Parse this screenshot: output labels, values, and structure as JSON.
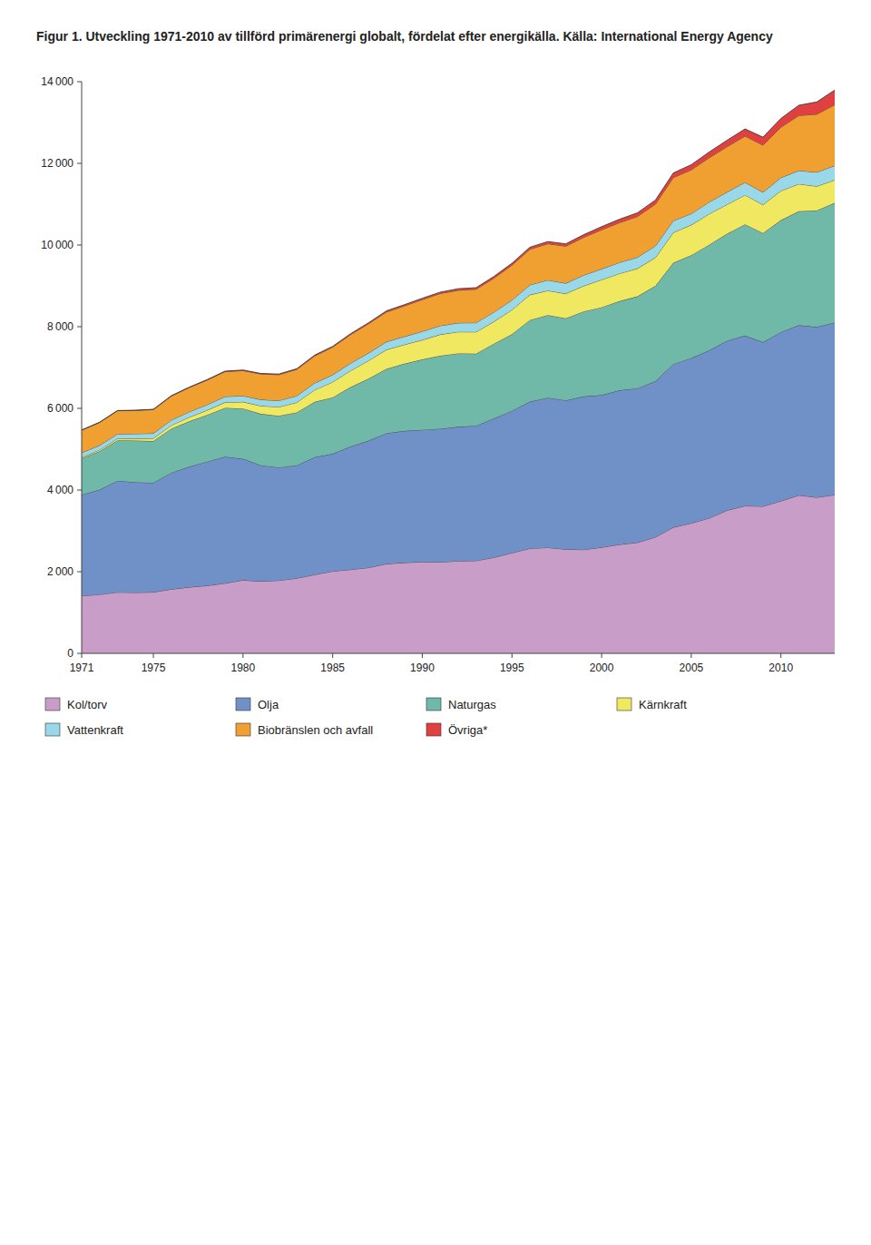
{
  "chart_data": {
    "type": "area",
    "stacked": true,
    "title": "Figur 1. Utveckling 1971-2010 av tillförd primärenergi globalt, fördelat efter energikälla. Källa: International Energy Agency",
    "x": [
      1971,
      1972,
      1973,
      1974,
      1975,
      1976,
      1977,
      1978,
      1979,
      1980,
      1981,
      1982,
      1983,
      1984,
      1985,
      1986,
      1987,
      1988,
      1989,
      1990,
      1991,
      1992,
      1993,
      1994,
      1995,
      1996,
      1997,
      1998,
      1999,
      2000,
      2001,
      2002,
      2003,
      2004,
      2005,
      2006,
      2007,
      2008,
      2009,
      2010,
      2011,
      2012,
      2013
    ],
    "series": [
      {
        "name": "Kol/torv",
        "color": "#C89DC8",
        "values": [
          1407,
          1441,
          1497,
          1490,
          1499,
          1571,
          1621,
          1659,
          1717,
          1793,
          1765,
          1786,
          1839,
          1928,
          2011,
          2052,
          2100,
          2193,
          2220,
          2243,
          2234,
          2263,
          2269,
          2350,
          2461,
          2569,
          2591,
          2548,
          2540,
          2595,
          2666,
          2715,
          2846,
          3087,
          3188,
          3312,
          3503,
          3612,
          3601,
          3731,
          3872,
          3821,
          3882
        ]
      },
      {
        "name": "Olja",
        "color": "#7090C8",
        "values": [
          2477,
          2569,
          2732,
          2699,
          2680,
          2853,
          2950,
          3038,
          3099,
          2972,
          2841,
          2766,
          2768,
          2877,
          2876,
          3014,
          3109,
          3198,
          3228,
          3232,
          3268,
          3286,
          3305,
          3404,
          3480,
          3596,
          3672,
          3647,
          3752,
          3732,
          3777,
          3776,
          3819,
          3999,
          4042,
          4109,
          4153,
          4169,
          4019,
          4138,
          4165,
          4173,
          4219
        ]
      },
      {
        "name": "Naturgas",
        "color": "#70B8A8",
        "values": [
          895,
          940,
          989,
          1021,
          1021,
          1077,
          1110,
          1143,
          1196,
          1232,
          1259,
          1266,
          1295,
          1355,
          1381,
          1454,
          1518,
          1575,
          1645,
          1724,
          1787,
          1798,
          1765,
          1830,
          1876,
          1998,
          2021,
          2012,
          2082,
          2148,
          2183,
          2251,
          2334,
          2479,
          2521,
          2586,
          2620,
          2726,
          2671,
          2740,
          2789,
          2852,
          2930
        ]
      },
      {
        "name": "Kärnkraft",
        "color": "#F0E860",
        "values": [
          29,
          35,
          44,
          54,
          66,
          84,
          102,
          115,
          136,
          162,
          196,
          217,
          243,
          292,
          378,
          403,
          441,
          471,
          468,
          477,
          520,
          527,
          534,
          542,
          596,
          618,
          600,
          603,
          625,
          676,
          676,
          684,
          694,
          741,
          741,
          755,
          719,
          718,
          697,
          719,
          669,
          593,
          563
        ]
      },
      {
        "name": "Vattenkraft",
        "color": "#98D8E8",
        "values": [
          104,
          109,
          111,
          115,
          122,
          127,
          130,
          135,
          141,
          148,
          153,
          155,
          162,
          169,
          175,
          183,
          186,
          194,
          199,
          208,
          214,
          219,
          224,
          231,
          238,
          243,
          256,
          254,
          263,
          264,
          271,
          274,
          285,
          289,
          276,
          290,
          303,
          309,
          305,
          321,
          327,
          344,
          350
        ]
      },
      {
        "name": "Biobränslen och avfall",
        "color": "#F0A030",
        "values": [
          553,
          561,
          568,
          569,
          582,
          589,
          597,
          604,
          611,
          618,
          626,
          635,
          648,
          664,
          678,
          701,
          718,
          729,
          748,
          780,
          788,
          799,
          819,
          832,
          855,
          872,
          891,
          907,
          925,
          958,
          975,
          999,
          1022,
          1056,
          1072,
          1085,
          1111,
          1133,
          1153,
          1235,
          1349,
          1419,
          1491
        ]
      },
      {
        "name": "Övriga*",
        "color": "#E04040",
        "values": [
          5,
          5,
          6,
          6,
          7,
          8,
          9,
          10,
          12,
          14,
          15,
          16,
          17,
          19,
          20,
          22,
          24,
          28,
          31,
          33,
          35,
          38,
          40,
          43,
          47,
          50,
          54,
          58,
          66,
          77,
          83,
          90,
          101,
          113,
          127,
          140,
          158,
          175,
          196,
          215,
          252,
          302,
          358
        ]
      }
    ],
    "xlim": [
      1971,
      2013
    ],
    "xticks": [
      1971,
      1975,
      1980,
      1985,
      1990,
      1995,
      2000,
      2005,
      2010
    ],
    "ylim": [
      0,
      14000
    ],
    "yticks": [
      0,
      {
        "value": 2000,
        "label": "2 000"
      },
      {
        "value": 4000,
        "label": "4 000"
      },
      {
        "value": 6000,
        "label": "6 000"
      },
      {
        "value": 8000,
        "label": "8 000"
      },
      {
        "value": 10000,
        "label": "10 000"
      },
      {
        "value": 12000,
        "label": "12 000"
      },
      {
        "value": 14000,
        "label": "14 000"
      }
    ],
    "grid": false,
    "legend": "bottom"
  }
}
